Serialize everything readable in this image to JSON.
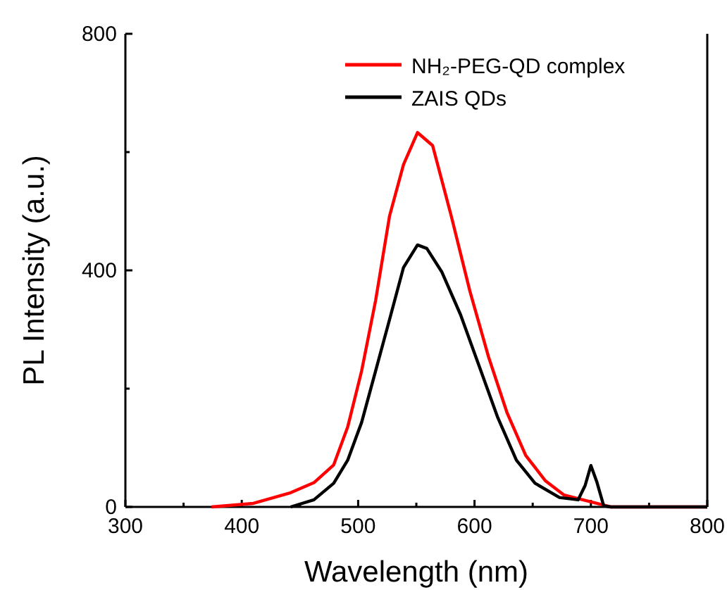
{
  "chart_data": {
    "type": "line",
    "xlabel": "Wavelength (nm)",
    "ylabel": "PL Intensity (a.u.)",
    "xlim": [
      300,
      800
    ],
    "ylim": [
      0,
      800
    ],
    "xticks": [
      300,
      {
        "value": 350,
        "label": null
      },
      400,
      {
        "value": 450,
        "label": null
      },
      500,
      {
        "value": 550,
        "label": null
      },
      600,
      {
        "value": 650,
        "label": null
      },
      700,
      {
        "value": 750,
        "label": null
      },
      800
    ],
    "yticks": [
      0,
      {
        "value": 200,
        "label": null
      },
      400,
      {
        "value": 600,
        "label": null
      },
      800
    ],
    "grid": false,
    "legend": "top right",
    "marker": "none",
    "line_style": "solid",
    "series": [
      {
        "name": "NH₂-PEG-QD complex",
        "color": "#ff0000",
        "x": [
          374,
          410,
          442,
          462,
          479,
          491,
          503,
          515,
          527,
          539,
          551,
          564,
          580,
          596,
          612,
          628,
          644,
          661,
          677,
          693,
          705,
          717,
          800
        ],
        "values": [
          0,
          6,
          24,
          41,
          71,
          135,
          230,
          349,
          492,
          579,
          633,
          611,
          492,
          365,
          254,
          159,
          87,
          44,
          20,
          12,
          6,
          0,
          0
        ]
      },
      {
        "name": "ZAIS QDs",
        "color": "#000000",
        "x": [
          442,
          462,
          479,
          491,
          503,
          515,
          527,
          539,
          551,
          559,
          572,
          588,
          604,
          620,
          636,
          652,
          673,
          689,
          695,
          700,
          705,
          711,
          717,
          800
        ],
        "values": [
          0,
          12,
          40,
          79,
          143,
          230,
          317,
          405,
          443,
          437,
          397,
          325,
          238,
          151,
          79,
          40,
          16,
          12,
          36,
          70,
          43,
          2,
          0,
          0
        ]
      }
    ]
  }
}
